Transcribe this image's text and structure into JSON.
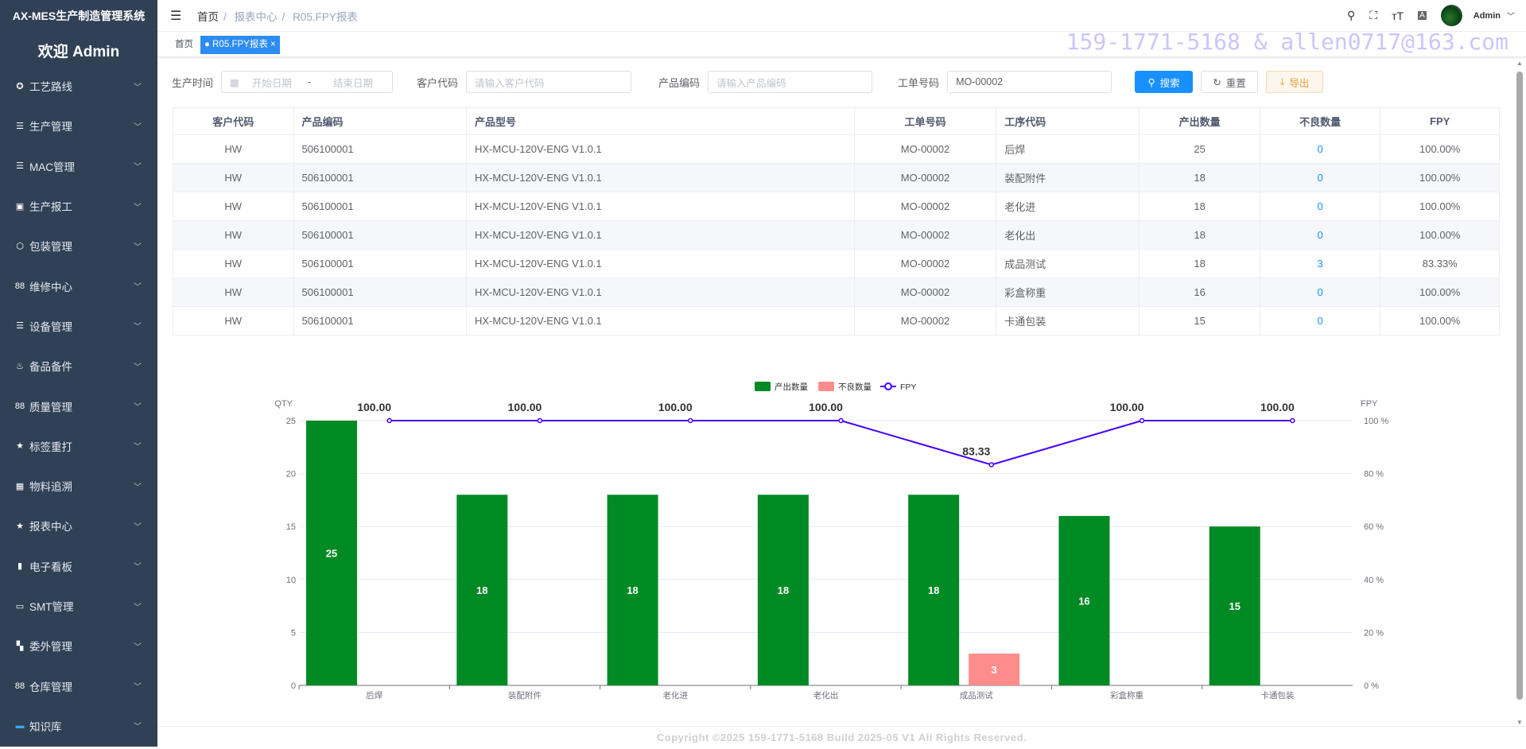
{
  "app": {
    "title": "AX-MES生产制造管理系统",
    "welcome": "欢迎 Admin"
  },
  "sidebar": {
    "items": [
      {
        "label": "工艺路线",
        "icon": "route-icon",
        "glyph": "✪"
      },
      {
        "label": "生产管理",
        "icon": "list-icon",
        "glyph": "☰"
      },
      {
        "label": "MAC管理",
        "icon": "list-icon",
        "glyph": "☰"
      },
      {
        "label": "生产报工",
        "icon": "chart-board-icon",
        "glyph": "▣"
      },
      {
        "label": "包装管理",
        "icon": "box-icon",
        "glyph": "⬡"
      },
      {
        "label": "维修中心",
        "icon": "grid-icon",
        "glyph": "88"
      },
      {
        "label": "设备管理",
        "icon": "list-icon",
        "glyph": "☰"
      },
      {
        "label": "备品备件",
        "icon": "teapot-icon",
        "glyph": "♨"
      },
      {
        "label": "质量管理",
        "icon": "grid-icon",
        "glyph": "88"
      },
      {
        "label": "标签重打",
        "icon": "star-icon",
        "glyph": "★"
      },
      {
        "label": "物料追溯",
        "icon": "table-icon",
        "glyph": "▦"
      },
      {
        "label": "报表中心",
        "icon": "star-icon",
        "glyph": "★"
      },
      {
        "label": "电子看板",
        "icon": "bar-chart-icon",
        "glyph": "▮"
      },
      {
        "label": "SMT管理",
        "icon": "monitor-icon",
        "glyph": "▭"
      },
      {
        "label": "委外管理",
        "icon": "apps-icon",
        "glyph": "▚"
      },
      {
        "label": "仓库管理",
        "icon": "grid-icon",
        "glyph": "88"
      },
      {
        "label": "知识库",
        "icon": "screen-icon",
        "glyph": "▬"
      }
    ]
  },
  "header": {
    "breadcrumb": [
      "首页",
      "报表中心",
      "R05.FPY报表"
    ],
    "user": "Admin"
  },
  "tags": {
    "home": "首页",
    "active": "R05.FPY报表"
  },
  "watermark": "159-1771-5168 & allen0717@163.com",
  "filters": {
    "time_label": "生产时间",
    "start_placeholder": "开始日期",
    "sep": "-",
    "end_placeholder": "结束日期",
    "customer_label": "客户代码",
    "customer_placeholder": "请输入客户代码",
    "product_label": "产品编码",
    "product_placeholder": "请输入产品编码",
    "order_label": "工单号码",
    "order_value": "MO-00002",
    "search": "搜索",
    "reset": "重置",
    "export": "导出"
  },
  "table": {
    "headers": [
      "客户代码",
      "产品编码",
      "产品型号",
      "工单号码",
      "工序代码",
      "产出数量",
      "不良数量",
      "FPY"
    ],
    "rows": [
      [
        "HW",
        "506100001",
        "HX-MCU-120V-ENG V1.0.1",
        "MO-00002",
        "后焊",
        "25",
        "0",
        "100.00%"
      ],
      [
        "HW",
        "506100001",
        "HX-MCU-120V-ENG V1.0.1",
        "MO-00002",
        "装配附件",
        "18",
        "0",
        "100.00%"
      ],
      [
        "HW",
        "506100001",
        "HX-MCU-120V-ENG V1.0.1",
        "MO-00002",
        "老化进",
        "18",
        "0",
        "100.00%"
      ],
      [
        "HW",
        "506100001",
        "HX-MCU-120V-ENG V1.0.1",
        "MO-00002",
        "老化出",
        "18",
        "0",
        "100.00%"
      ],
      [
        "HW",
        "506100001",
        "HX-MCU-120V-ENG V1.0.1",
        "MO-00002",
        "成品测试",
        "18",
        "3",
        "83.33%"
      ],
      [
        "HW",
        "506100001",
        "HX-MCU-120V-ENG V1.0.1",
        "MO-00002",
        "彩盒称重",
        "16",
        "0",
        "100.00%"
      ],
      [
        "HW",
        "506100001",
        "HX-MCU-120V-ENG V1.0.1",
        "MO-00002",
        "卡通包装",
        "15",
        "0",
        "100.00%"
      ]
    ]
  },
  "chart_data": {
    "type": "bar",
    "categories": [
      "后焊",
      "装配附件",
      "老化进",
      "老化出",
      "成品测试",
      "彩盒称重",
      "卡通包装"
    ],
    "series": [
      {
        "name": "产出数量",
        "type": "bar",
        "color": "#008a24",
        "values": [
          25,
          18,
          18,
          18,
          18,
          16,
          15
        ]
      },
      {
        "name": "不良数量",
        "type": "bar",
        "color": "#ff8c8c",
        "values": [
          0,
          0,
          0,
          0,
          3,
          0,
          0
        ]
      },
      {
        "name": "FPY",
        "type": "line",
        "color": "#4400ff",
        "values": [
          100.0,
          100.0,
          100.0,
          100.0,
          83.33,
          100.0,
          100.0
        ]
      }
    ],
    "ylabel": "QTY",
    "ylim": [
      0,
      25
    ],
    "yticks": [
      0,
      5,
      10,
      15,
      20,
      25
    ],
    "y2label": "FPY",
    "y2lim": [
      0,
      100
    ],
    "y2ticks": [
      "0 %",
      "20 %",
      "40 %",
      "60 %",
      "80 %",
      "100 %"
    ],
    "legend": "top-center",
    "grid": true
  },
  "footer": "Copyright ©2025 159-1771-5168 Build 2025-05 V1 All Rights Reserved."
}
